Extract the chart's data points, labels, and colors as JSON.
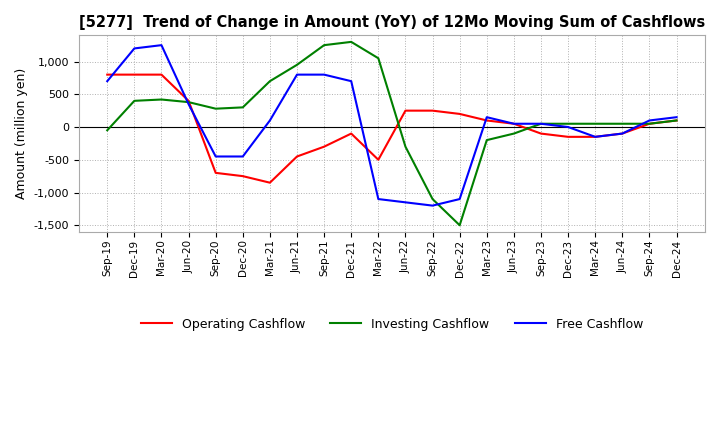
{
  "title": "[5277]  Trend of Change in Amount (YoY) of 12Mo Moving Sum of Cashflows",
  "ylabel": "Amount (million yen)",
  "xlabels": [
    "Sep-19",
    "Dec-19",
    "Mar-20",
    "Jun-20",
    "Sep-20",
    "Dec-20",
    "Mar-21",
    "Jun-21",
    "Sep-21",
    "Dec-21",
    "Mar-22",
    "Jun-22",
    "Sep-22",
    "Dec-22",
    "Mar-23",
    "Jun-23",
    "Sep-23",
    "Dec-23",
    "Mar-24",
    "Jun-24",
    "Sep-24",
    "Dec-24"
  ],
  "operating": [
    800,
    800,
    800,
    400,
    -700,
    -750,
    -850,
    -450,
    -300,
    -100,
    -500,
    250,
    250,
    200,
    100,
    50,
    -100,
    -150,
    -150,
    -100,
    50,
    100
  ],
  "investing": [
    -50,
    400,
    420,
    380,
    280,
    300,
    700,
    950,
    1250,
    1300,
    1050,
    -300,
    -1100,
    -1500,
    -200,
    -100,
    50,
    50,
    50,
    50,
    50,
    100
  ],
  "free": [
    700,
    1200,
    1250,
    350,
    -450,
    -450,
    100,
    800,
    800,
    700,
    -1100,
    -1150,
    -1200,
    -1100,
    150,
    50,
    50,
    0,
    -150,
    -100,
    100,
    150
  ],
  "operating_color": "#ff0000",
  "investing_color": "#008000",
  "free_color": "#0000ff",
  "ylim": [
    -1600,
    1400
  ],
  "yticks": [
    -1500,
    -1000,
    -500,
    0,
    500,
    1000
  ],
  "grid_color": "#b0b0b0",
  "bg_color": "#ffffff"
}
